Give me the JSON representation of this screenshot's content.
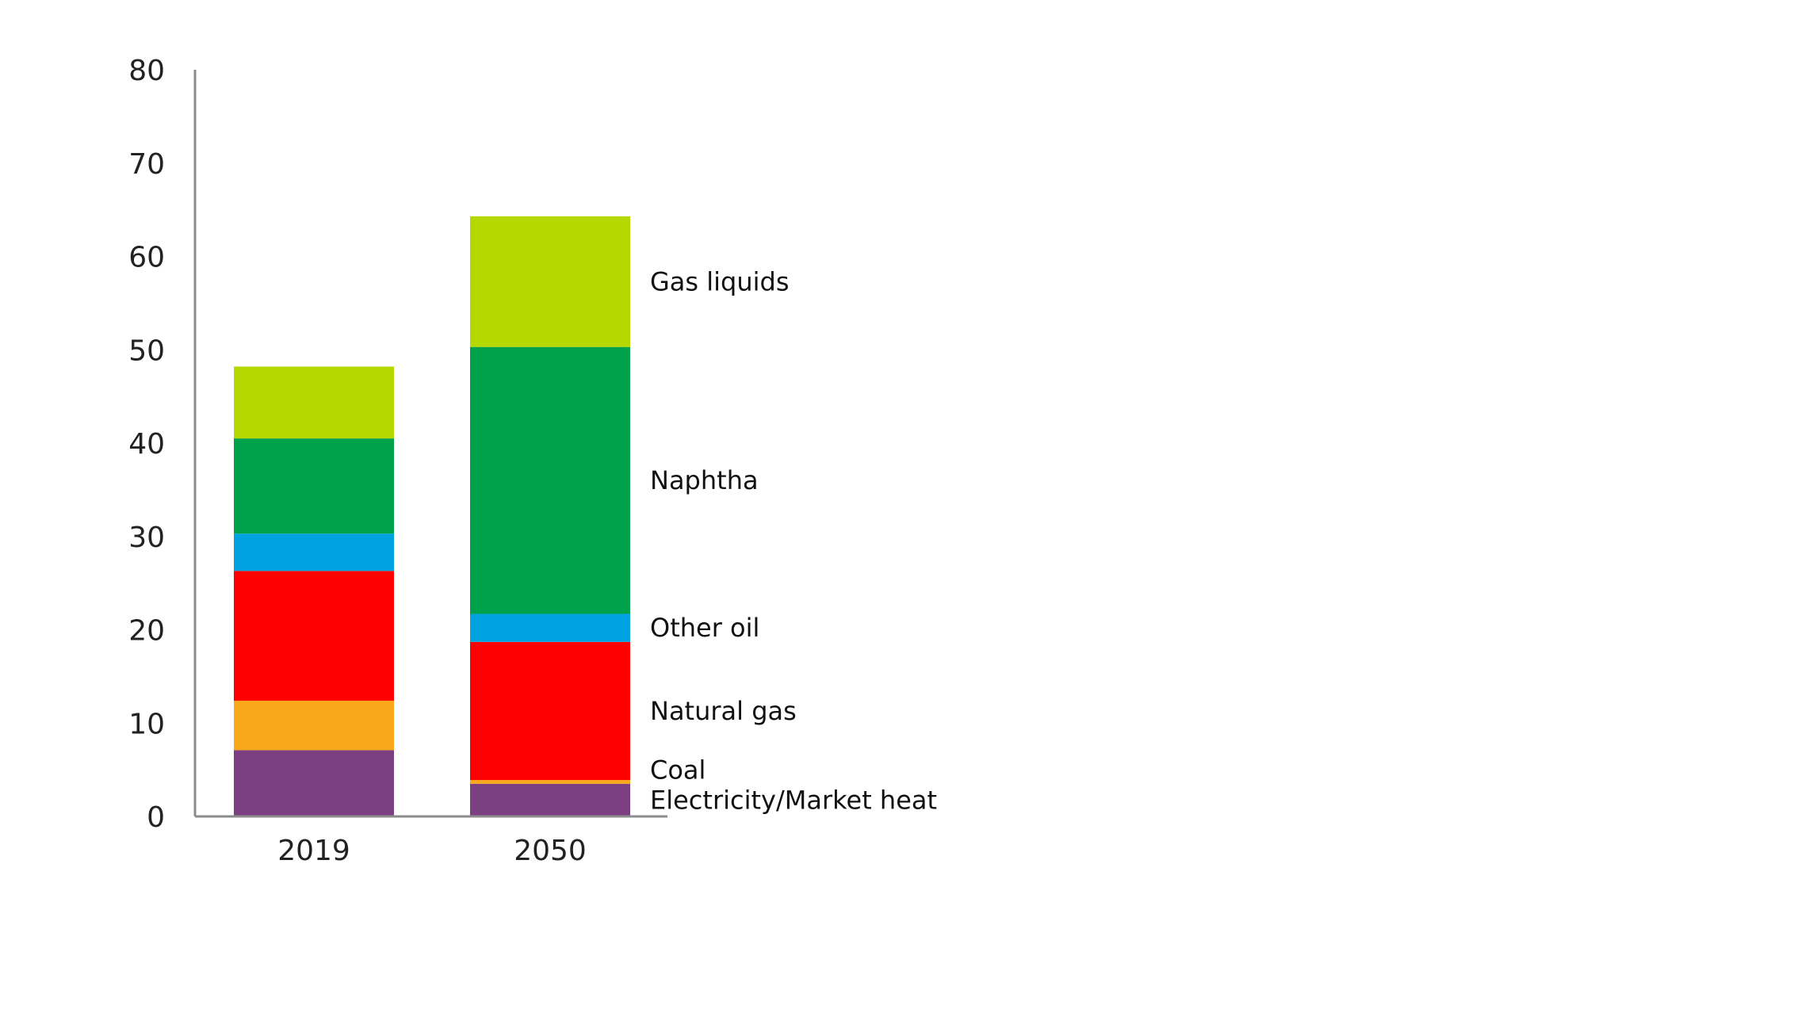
{
  "chart_data": {
    "type": "bar",
    "stacked": true,
    "title": "",
    "xlabel": "",
    "ylabel": "",
    "ylim": [
      0,
      80
    ],
    "yticks": [
      0,
      10,
      20,
      30,
      40,
      50,
      60,
      70,
      80
    ],
    "grid": false,
    "legend": "direct labels on right of last bar",
    "categories": [
      "2019",
      "2050"
    ],
    "series": [
      {
        "name": "Electricity/Market heat",
        "color": "#7b3f82",
        "values": [
          7.1,
          3.5
        ]
      },
      {
        "name": "Coal",
        "color": "#f9a81b",
        "values": [
          5.3,
          0.4
        ]
      },
      {
        "name": "Natural gas",
        "color": "#ff0000",
        "values": [
          13.9,
          14.8
        ]
      },
      {
        "name": "Other oil",
        "color": "#00a3e0",
        "values": [
          4.0,
          3.0
        ]
      },
      {
        "name": "Naphtha",
        "color": "#00a14b",
        "values": [
          10.2,
          28.6
        ]
      },
      {
        "name": "Gas liquids",
        "color": "#b5d800",
        "values": [
          7.7,
          14.0
        ]
      }
    ]
  }
}
